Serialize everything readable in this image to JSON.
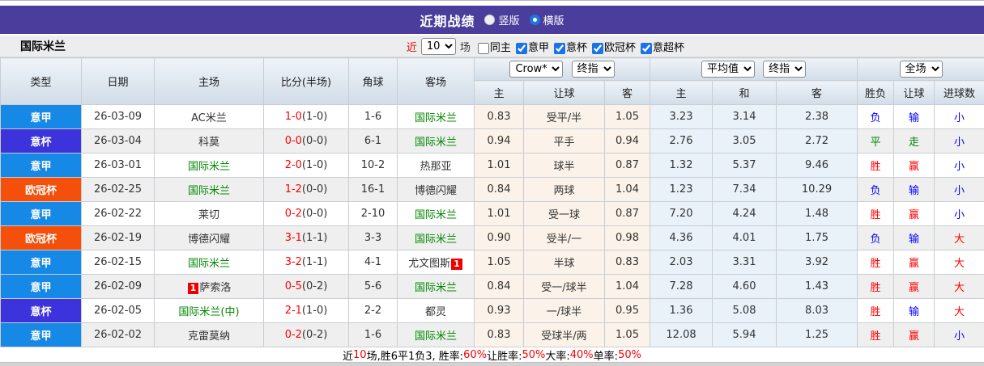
{
  "colors": {
    "accent_bar": "#4a3d9c",
    "league": {
      "意甲": "#1689e6",
      "意杯": "#3d33dd",
      "欧冠杯": "#f4500b"
    },
    "self_team_green": "#008800",
    "win_red": "#ff0000",
    "draw_green": "#008000",
    "lose_blue": "#0000ff",
    "result_map": {
      "胜": "win",
      "平": "draw",
      "负": "lose",
      "赢": "win",
      "走": "draw",
      "输": "lose",
      "大": "win",
      "小": "lose"
    }
  },
  "title_bar": {
    "title": "近期战绩",
    "radios": [
      {
        "label": "竖版",
        "selected": false
      },
      {
        "label": "横版",
        "selected": true
      }
    ]
  },
  "filter_bar": {
    "team": "国际米兰",
    "near": "近",
    "count": "10",
    "unit": "场",
    "checkboxes": [
      {
        "label": "同主",
        "checked": false
      },
      {
        "label": "意甲",
        "checked": true
      },
      {
        "label": "意杯",
        "checked": true
      },
      {
        "label": "欧冠杯",
        "checked": true
      },
      {
        "label": "意超杯",
        "checked": true
      }
    ]
  },
  "table": {
    "main_headers": [
      "类型",
      "日期",
      "主场",
      "比分(半场)",
      "角球",
      "客场"
    ],
    "selects": {
      "company": "Crow*",
      "company_time": "终指",
      "avg": "平均值",
      "avg_time": "终指",
      "scope": "全场"
    },
    "sub_headers": [
      "主",
      "让球",
      "客",
      "主",
      "和",
      "客",
      "胜负",
      "让球",
      "进球数"
    ],
    "rows": [
      {
        "league": "意甲",
        "date": "26-03-09",
        "home": "AC米兰",
        "home_self": false,
        "away": "国际米兰",
        "away_self": true,
        "score": "1-0",
        "half": "(1-0)",
        "corner": "1-6",
        "ah": [
          "0.83",
          "受平/半",
          "1.05"
        ],
        "eu": [
          "3.23",
          "3.14",
          "2.38"
        ],
        "res": [
          "负",
          "输",
          "小"
        ]
      },
      {
        "league": "意杯",
        "date": "26-03-04",
        "home": "科莫",
        "home_self": false,
        "away": "国际米兰",
        "away_self": true,
        "score": "0-0",
        "half": "(0-0)",
        "corner": "6-1",
        "ah": [
          "0.94",
          "平手",
          "0.94"
        ],
        "eu": [
          "2.76",
          "3.05",
          "2.72"
        ],
        "res": [
          "平",
          "走",
          "小"
        ]
      },
      {
        "league": "意甲",
        "date": "26-03-01",
        "home": "国际米兰",
        "home_self": true,
        "away": "热那亚",
        "away_self": false,
        "score": "2-0",
        "half": "(1-0)",
        "corner": "10-2",
        "ah": [
          "1.01",
          "球半",
          "0.87"
        ],
        "eu": [
          "1.32",
          "5.37",
          "9.46"
        ],
        "res": [
          "胜",
          "赢",
          "小"
        ]
      },
      {
        "league": "欧冠杯",
        "date": "26-02-25",
        "home": "国际米兰",
        "home_self": true,
        "away": "博德闪耀",
        "away_self": false,
        "score": "1-2",
        "half": "(0-0)",
        "corner": "16-1",
        "ah": [
          "0.84",
          "两球",
          "1.04"
        ],
        "eu": [
          "1.23",
          "7.34",
          "10.29"
        ],
        "res": [
          "负",
          "输",
          "小"
        ]
      },
      {
        "league": "意甲",
        "date": "26-02-22",
        "home": "莱切",
        "home_self": false,
        "away": "国际米兰",
        "away_self": true,
        "score": "0-2",
        "half": "(0-0)",
        "corner": "2-10",
        "ah": [
          "1.01",
          "受一球",
          "0.87"
        ],
        "eu": [
          "7.20",
          "4.24",
          "1.48"
        ],
        "res": [
          "胜",
          "赢",
          "小"
        ]
      },
      {
        "league": "欧冠杯",
        "date": "26-02-19",
        "home": "博德闪耀",
        "home_self": false,
        "away": "国际米兰",
        "away_self": true,
        "score": "3-1",
        "half": "(1-1)",
        "corner": "3-3",
        "ah": [
          "0.90",
          "受半/一",
          "0.98"
        ],
        "eu": [
          "4.36",
          "4.01",
          "1.75"
        ],
        "res": [
          "负",
          "输",
          "大"
        ]
      },
      {
        "league": "意甲",
        "date": "26-02-15",
        "home": "国际米兰",
        "home_self": true,
        "away": "尤文图斯",
        "away_self": false,
        "away_card_after": "1",
        "score": "3-2",
        "half": "(1-1)",
        "corner": "4-1",
        "ah": [
          "1.05",
          "半球",
          "0.83"
        ],
        "eu": [
          "2.03",
          "3.31",
          "3.92"
        ],
        "res": [
          "胜",
          "赢",
          "大"
        ]
      },
      {
        "league": "意甲",
        "date": "26-02-09",
        "home": "萨索洛",
        "home_self": false,
        "home_card_before": "1",
        "away": "国际米兰",
        "away_self": true,
        "score": "0-5",
        "half": "(0-2)",
        "corner": "5-6",
        "ah": [
          "0.84",
          "受一/球半",
          "1.04"
        ],
        "eu": [
          "7.28",
          "4.60",
          "1.43"
        ],
        "res": [
          "胜",
          "赢",
          "大"
        ]
      },
      {
        "league": "意杯",
        "date": "26-02-05",
        "home": "国际米兰(中)",
        "home_self": true,
        "away": "都灵",
        "away_self": false,
        "score": "2-1",
        "half": "(1-0)",
        "corner": "2-2",
        "ah": [
          "0.93",
          "一/球半",
          "0.95"
        ],
        "eu": [
          "1.36",
          "5.08",
          "8.03"
        ],
        "res": [
          "胜",
          "输",
          "大"
        ]
      },
      {
        "league": "意甲",
        "date": "26-02-02",
        "home": "克雷莫纳",
        "home_self": false,
        "away": "国际米兰",
        "away_self": true,
        "score": "0-2",
        "half": "(0-2)",
        "corner": "1-6",
        "ah": [
          "0.83",
          "受球半/两",
          "1.05"
        ],
        "eu": [
          "12.08",
          "5.94",
          "1.25"
        ],
        "res": [
          "胜",
          "赢",
          "小"
        ]
      }
    ]
  },
  "footer": {
    "segments": [
      {
        "text": "近",
        "red": false
      },
      {
        "text": "10",
        "red": true
      },
      {
        "text": "场,胜6平1负3, 胜率:",
        "red": false
      },
      {
        "text": "60%",
        "red": true
      },
      {
        "text": " 让胜率:",
        "red": false
      },
      {
        "text": "50%",
        "red": true
      },
      {
        "text": " 大率:",
        "red": false
      },
      {
        "text": "40%",
        "red": true
      },
      {
        "text": " 单率:",
        "red": false
      },
      {
        "text": "50%",
        "red": true
      }
    ]
  }
}
